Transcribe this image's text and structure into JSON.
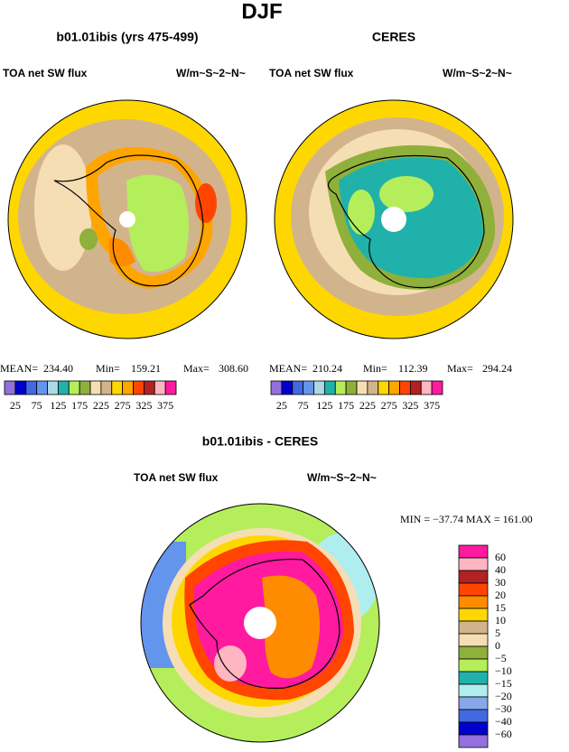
{
  "title": "DJF",
  "panels": [
    {
      "title": "b01.01ibis (yrs 475-499)",
      "left_label": "TOA net SW flux",
      "right_label": "W/m~S~2~N~",
      "stats": {
        "mean_label": "MEAN=",
        "mean": "234.40",
        "min_label": "Min=",
        "min": "159.21",
        "max_label": "Max=",
        "max": "308.60"
      }
    },
    {
      "title": "CERES",
      "left_label": "TOA net SW flux",
      "right_label": "W/m~S~2~N~",
      "stats": {
        "mean_label": "MEAN=",
        "mean": "210.24",
        "min_label": "Min=",
        "min": "112.39",
        "max_label": "Max=",
        "max": "294.24"
      }
    }
  ],
  "colorbar": {
    "labels": [
      "25",
      "75",
      "125",
      "175",
      "225",
      "275",
      "325",
      "375"
    ],
    "colors": [
      "#9370db",
      "#0000cd",
      "#4169e1",
      "#6495ed",
      "#add8e6",
      "#20b2aa",
      "#b4ee5a",
      "#8fb03a",
      "#f5deb3",
      "#d2b48c",
      "#ffd700",
      "#ffa500",
      "#ff4500",
      "#b22222",
      "#ffb6c1",
      "#ff1aa0"
    ]
  },
  "difference": {
    "title": "b01.01ibis - CERES",
    "left_label": "TOA net SW flux",
    "right_label": "W/m~S~2~N~",
    "stats": "MIN = −37.74 MAX = 161.00",
    "colorbar": {
      "labels": [
        "60",
        "40",
        "30",
        "20",
        "15",
        "10",
        "5",
        "0",
        "−5",
        "−10",
        "−15",
        "−20",
        "−30",
        "−40",
        "−60"
      ],
      "colors": [
        "#ff1aa0",
        "#ffb6c1",
        "#b22222",
        "#ff4500",
        "#ff8c00",
        "#ffd700",
        "#d2b48c",
        "#f5deb3",
        "#8fb03a",
        "#b4ee5a",
        "#20b2aa",
        "#afeeee",
        "#87a8e8",
        "#4169e1",
        "#0000cd",
        "#9370db"
      ]
    }
  }
}
